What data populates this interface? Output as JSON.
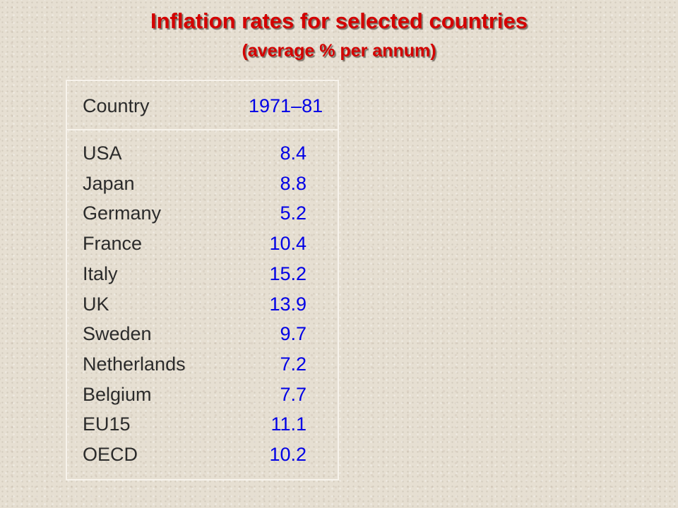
{
  "title": "Inflation rates for selected countries",
  "subtitle": "(average % per annum)",
  "table": {
    "header_country": "Country",
    "header_period": "1971–81"
  },
  "colors": {
    "title": "#d40000",
    "label_text": "#2b2b2b",
    "value_text": "#0000e6",
    "rules": "#f7f3ec",
    "background": "#e6dfd2"
  },
  "chart_data": {
    "type": "table",
    "title": "Inflation rates for selected countries",
    "subtitle": "(average % per annum)",
    "columns": [
      "Country",
      "1971–81"
    ],
    "rows": [
      {
        "country": "USA",
        "value": "8.4"
      },
      {
        "country": "Japan",
        "value": "8.8"
      },
      {
        "country": "Germany",
        "value": "5.2"
      },
      {
        "country": "France",
        "value": "10.4"
      },
      {
        "country": "Italy",
        "value": "15.2"
      },
      {
        "country": "UK",
        "value": "13.9"
      },
      {
        "country": "Sweden",
        "value": "9.7"
      },
      {
        "country": "Netherlands",
        "value": "7.2"
      },
      {
        "country": "Belgium",
        "value": "7.7"
      },
      {
        "country": "EU15",
        "value": "11.1"
      },
      {
        "country": "OECD",
        "value": "10.2"
      }
    ]
  }
}
